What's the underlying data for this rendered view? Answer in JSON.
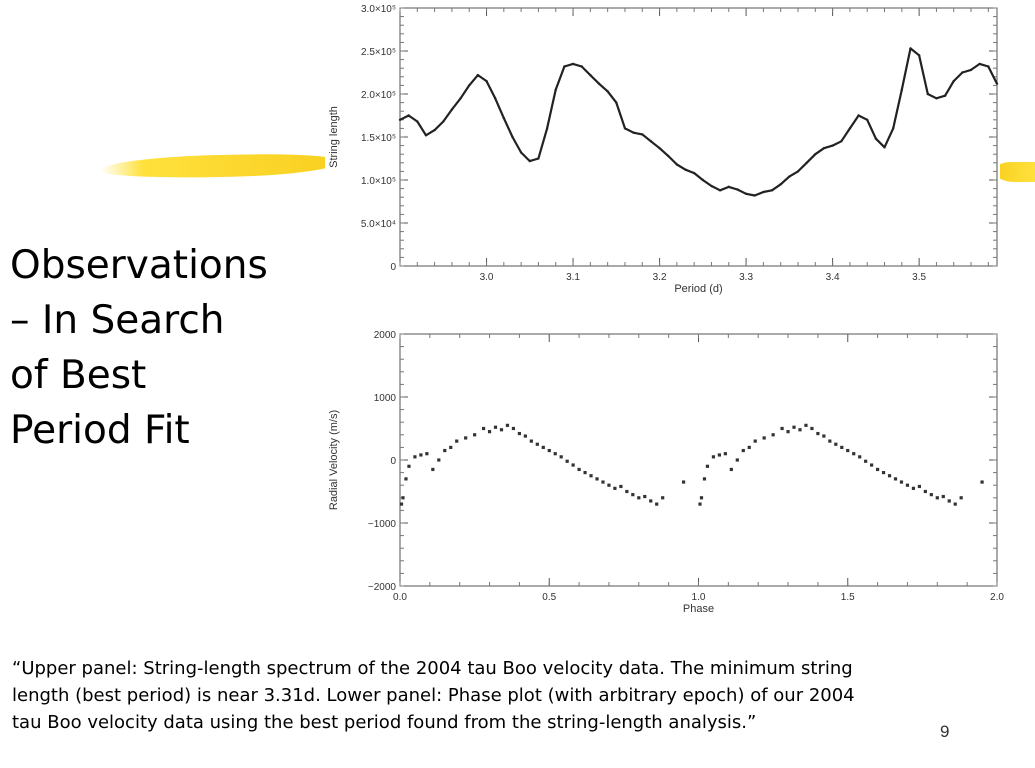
{
  "slide": {
    "title": "Observations\n– In Search\nof Best\nPeriod Fit",
    "caption": "“Upper panel: String-length spectrum of the 2004 tau Boo velocity data. The minimum string length (best period) is near 3.31d. Lower panel: Phase plot (with arbitrary epoch) of our 2004 tau Boo velocity data using the best period found from the string-length analysis.”",
    "page_number": "9",
    "accent_color": "#f8d020"
  },
  "chart_data": [
    {
      "type": "line",
      "xlabel": "Period (d)",
      "ylabel": "String length",
      "xlim": [
        2.9,
        3.59
      ],
      "ylim": [
        0,
        300000
      ],
      "x_ticks": [
        {
          "value": 3.0,
          "label": "3.0"
        },
        {
          "value": 3.1,
          "label": "3.1"
        },
        {
          "value": 3.2,
          "label": "3.2"
        },
        {
          "value": 3.3,
          "label": "3.3"
        },
        {
          "value": 3.4,
          "label": "3.4"
        },
        {
          "value": 3.5,
          "label": "3.5"
        }
      ],
      "y_ticks": [
        {
          "value": 0,
          "label": "0"
        },
        {
          "value": 50000,
          "label": "5.0×10⁴"
        },
        {
          "value": 100000,
          "label": "1.0×10⁵"
        },
        {
          "value": 150000,
          "label": "1.5×10⁵"
        },
        {
          "value": 200000,
          "label": "2.0×10⁵"
        },
        {
          "value": 250000,
          "label": "2.5×10⁵"
        },
        {
          "value": 300000,
          "label": "3.0×10⁵"
        }
      ],
      "series": [
        {
          "x": [
            2.9,
            2.91,
            2.92,
            2.93,
            2.94,
            2.95,
            2.96,
            2.97,
            2.98,
            2.99,
            3.0,
            3.01,
            3.02,
            3.03,
            3.04,
            3.05,
            3.06,
            3.07,
            3.08,
            3.09,
            3.1,
            3.11,
            3.12,
            3.13,
            3.14,
            3.15,
            3.16,
            3.17,
            3.18,
            3.19,
            3.2,
            3.21,
            3.22,
            3.23,
            3.24,
            3.25,
            3.26,
            3.27,
            3.28,
            3.29,
            3.3,
            3.31,
            3.32,
            3.33,
            3.34,
            3.35,
            3.36,
            3.37,
            3.38,
            3.39,
            3.4,
            3.41,
            3.42,
            3.43,
            3.44,
            3.45,
            3.46,
            3.47,
            3.48,
            3.49,
            3.5,
            3.51,
            3.52,
            3.53,
            3.54,
            3.55,
            3.56,
            3.57,
            3.58,
            3.59
          ],
          "values": [
            170000,
            175000,
            168000,
            152000,
            158000,
            168000,
            182000,
            195000,
            210000,
            222000,
            215000,
            195000,
            172000,
            150000,
            132000,
            122000,
            125000,
            160000,
            205000,
            232000,
            235000,
            232000,
            222000,
            212000,
            203000,
            190000,
            160000,
            155000,
            153000,
            145000,
            137000,
            128000,
            118000,
            112000,
            108000,
            100000,
            93000,
            88000,
            92000,
            89000,
            84000,
            82000,
            86000,
            88000,
            95000,
            104000,
            110000,
            120000,
            130000,
            137000,
            140000,
            145000,
            160000,
            175000,
            170000,
            148000,
            138000,
            160000,
            205000,
            253000,
            245000,
            200000,
            195000,
            198000,
            215000,
            225000,
            228000,
            235000,
            232000,
            212000
          ]
        }
      ]
    },
    {
      "type": "scatter",
      "xlabel": "Phase",
      "ylabel": "Radial Velocity (m/s)",
      "xlim": [
        0,
        2.0
      ],
      "ylim": [
        -2000,
        2000
      ],
      "x_ticks": [
        {
          "value": 0,
          "label": "0.0"
        },
        {
          "value": 0.5,
          "label": "0.5"
        },
        {
          "value": 1.0,
          "label": "1.0"
        },
        {
          "value": 1.5,
          "label": "1.5"
        },
        {
          "value": 2.0,
          "label": "2.0"
        }
      ],
      "y_ticks": [
        {
          "value": -2000,
          "label": "−2000"
        },
        {
          "value": -1000,
          "label": "−1000"
        },
        {
          "value": 0,
          "label": "0"
        },
        {
          "value": 1000,
          "label": "1000"
        },
        {
          "value": 2000,
          "label": "2000"
        }
      ],
      "series": [
        {
          "x": [
            0.005,
            0.01,
            0.02,
            0.03,
            0.05,
            0.07,
            0.09,
            0.11,
            0.13,
            0.15,
            0.17,
            0.19,
            0.22,
            0.25,
            0.28,
            0.3,
            0.32,
            0.34,
            0.36,
            0.38,
            0.4,
            0.42,
            0.44,
            0.46,
            0.48,
            0.5,
            0.52,
            0.54,
            0.56,
            0.58,
            0.6,
            0.62,
            0.64,
            0.66,
            0.68,
            0.7,
            0.72,
            0.74,
            0.76,
            0.78,
            0.8,
            0.82,
            0.84,
            0.86,
            0.88,
            0.95,
            1.005,
            1.01,
            1.02,
            1.03,
            1.05,
            1.07,
            1.09,
            1.11,
            1.13,
            1.15,
            1.17,
            1.19,
            1.22,
            1.25,
            1.28,
            1.3,
            1.32,
            1.34,
            1.36,
            1.38,
            1.4,
            1.42,
            1.44,
            1.46,
            1.48,
            1.5,
            1.52,
            1.54,
            1.56,
            1.58,
            1.6,
            1.62,
            1.64,
            1.66,
            1.68,
            1.7,
            1.72,
            1.74,
            1.76,
            1.78,
            1.8,
            1.82,
            1.84,
            1.86,
            1.88,
            1.95
          ],
          "values": [
            -700,
            -600,
            -300,
            -100,
            50,
            80,
            100,
            -150,
            0,
            150,
            200,
            300,
            350,
            400,
            500,
            450,
            520,
            480,
            550,
            500,
            420,
            380,
            300,
            250,
            200,
            150,
            100,
            50,
            -20,
            -80,
            -150,
            -200,
            -250,
            -300,
            -350,
            -400,
            -450,
            -420,
            -500,
            -550,
            -600,
            -580,
            -650,
            -700,
            -600,
            -350,
            -700,
            -600,
            -300,
            -100,
            50,
            80,
            100,
            -150,
            0,
            150,
            200,
            300,
            350,
            400,
            500,
            450,
            520,
            480,
            550,
            500,
            420,
            380,
            300,
            250,
            200,
            150,
            100,
            50,
            -20,
            -80,
            -150,
            -200,
            -250,
            -300,
            -350,
            -400,
            -450,
            -420,
            -500,
            -550,
            -600,
            -580,
            -650,
            -700,
            -600,
            -350
          ]
        }
      ]
    }
  ]
}
